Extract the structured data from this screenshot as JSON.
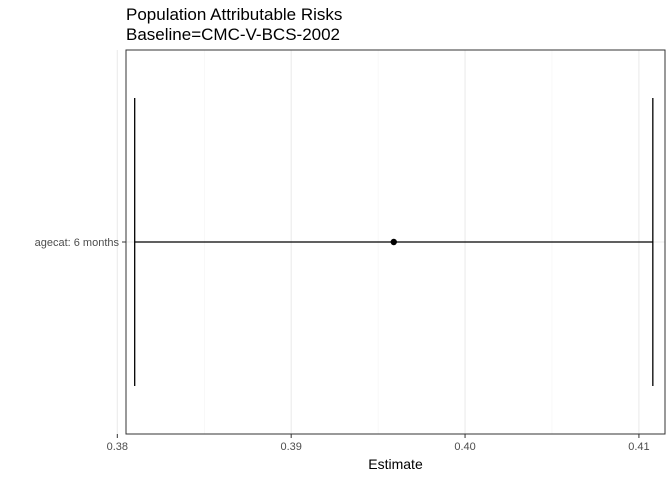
{
  "chart_data": {
    "type": "errorbar",
    "title": "Population Attributable Risks",
    "subtitle": "Baseline=CMC-V-BCS-2002",
    "xlabel": "Estimate",
    "ylabel": "",
    "xlim": [
      0.3805,
      0.4115
    ],
    "x_ticks": [
      0.38,
      0.39,
      0.4,
      0.41
    ],
    "x_tick_labels": [
      "0.38",
      "0.39",
      "0.40",
      "0.41"
    ],
    "categories": [
      "agecat: 6 months"
    ],
    "points": [
      {
        "category": "agecat: 6 months",
        "estimate": 0.3959,
        "lower": 0.381,
        "upper": 0.4108
      }
    ],
    "grid": true,
    "legend": "none"
  }
}
